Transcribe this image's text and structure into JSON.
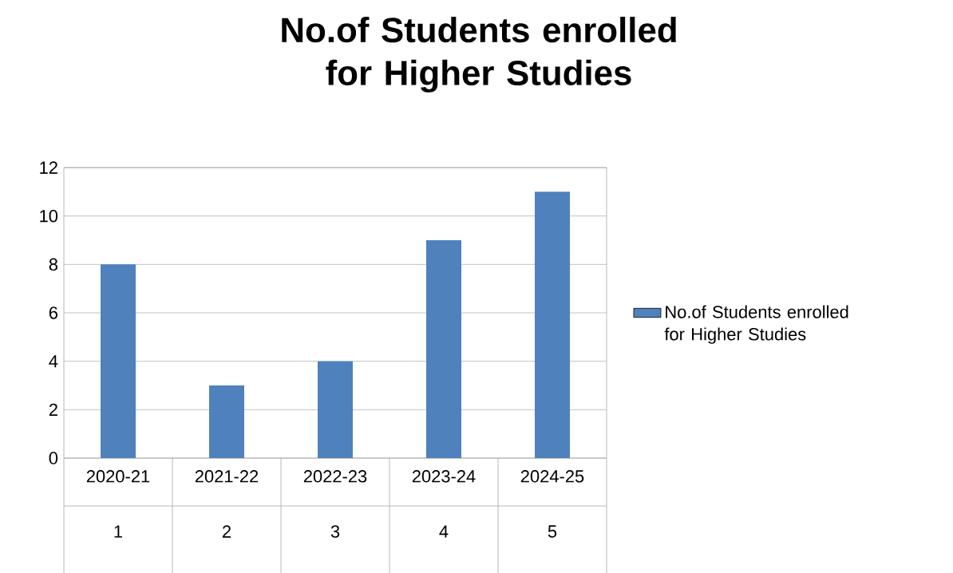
{
  "chart_data": {
    "type": "bar",
    "title": "No.of Students enrolled for Higher Studies",
    "categories": [
      "2020-21",
      "2021-22",
      "2022-23",
      "2023-24",
      "2024-25"
    ],
    "series": [
      {
        "name": "No.of Students enrolled for Higher Studies",
        "color": "#4f81bd",
        "values": [
          8,
          3,
          4,
          9,
          11
        ]
      }
    ],
    "ylim": [
      0,
      12
    ],
    "yticks": [
      0,
      2,
      4,
      6,
      8,
      10,
      12
    ],
    "grid": "y",
    "legend": "right",
    "annotations": [
      "1",
      "2",
      "3",
      "4",
      "5"
    ]
  }
}
